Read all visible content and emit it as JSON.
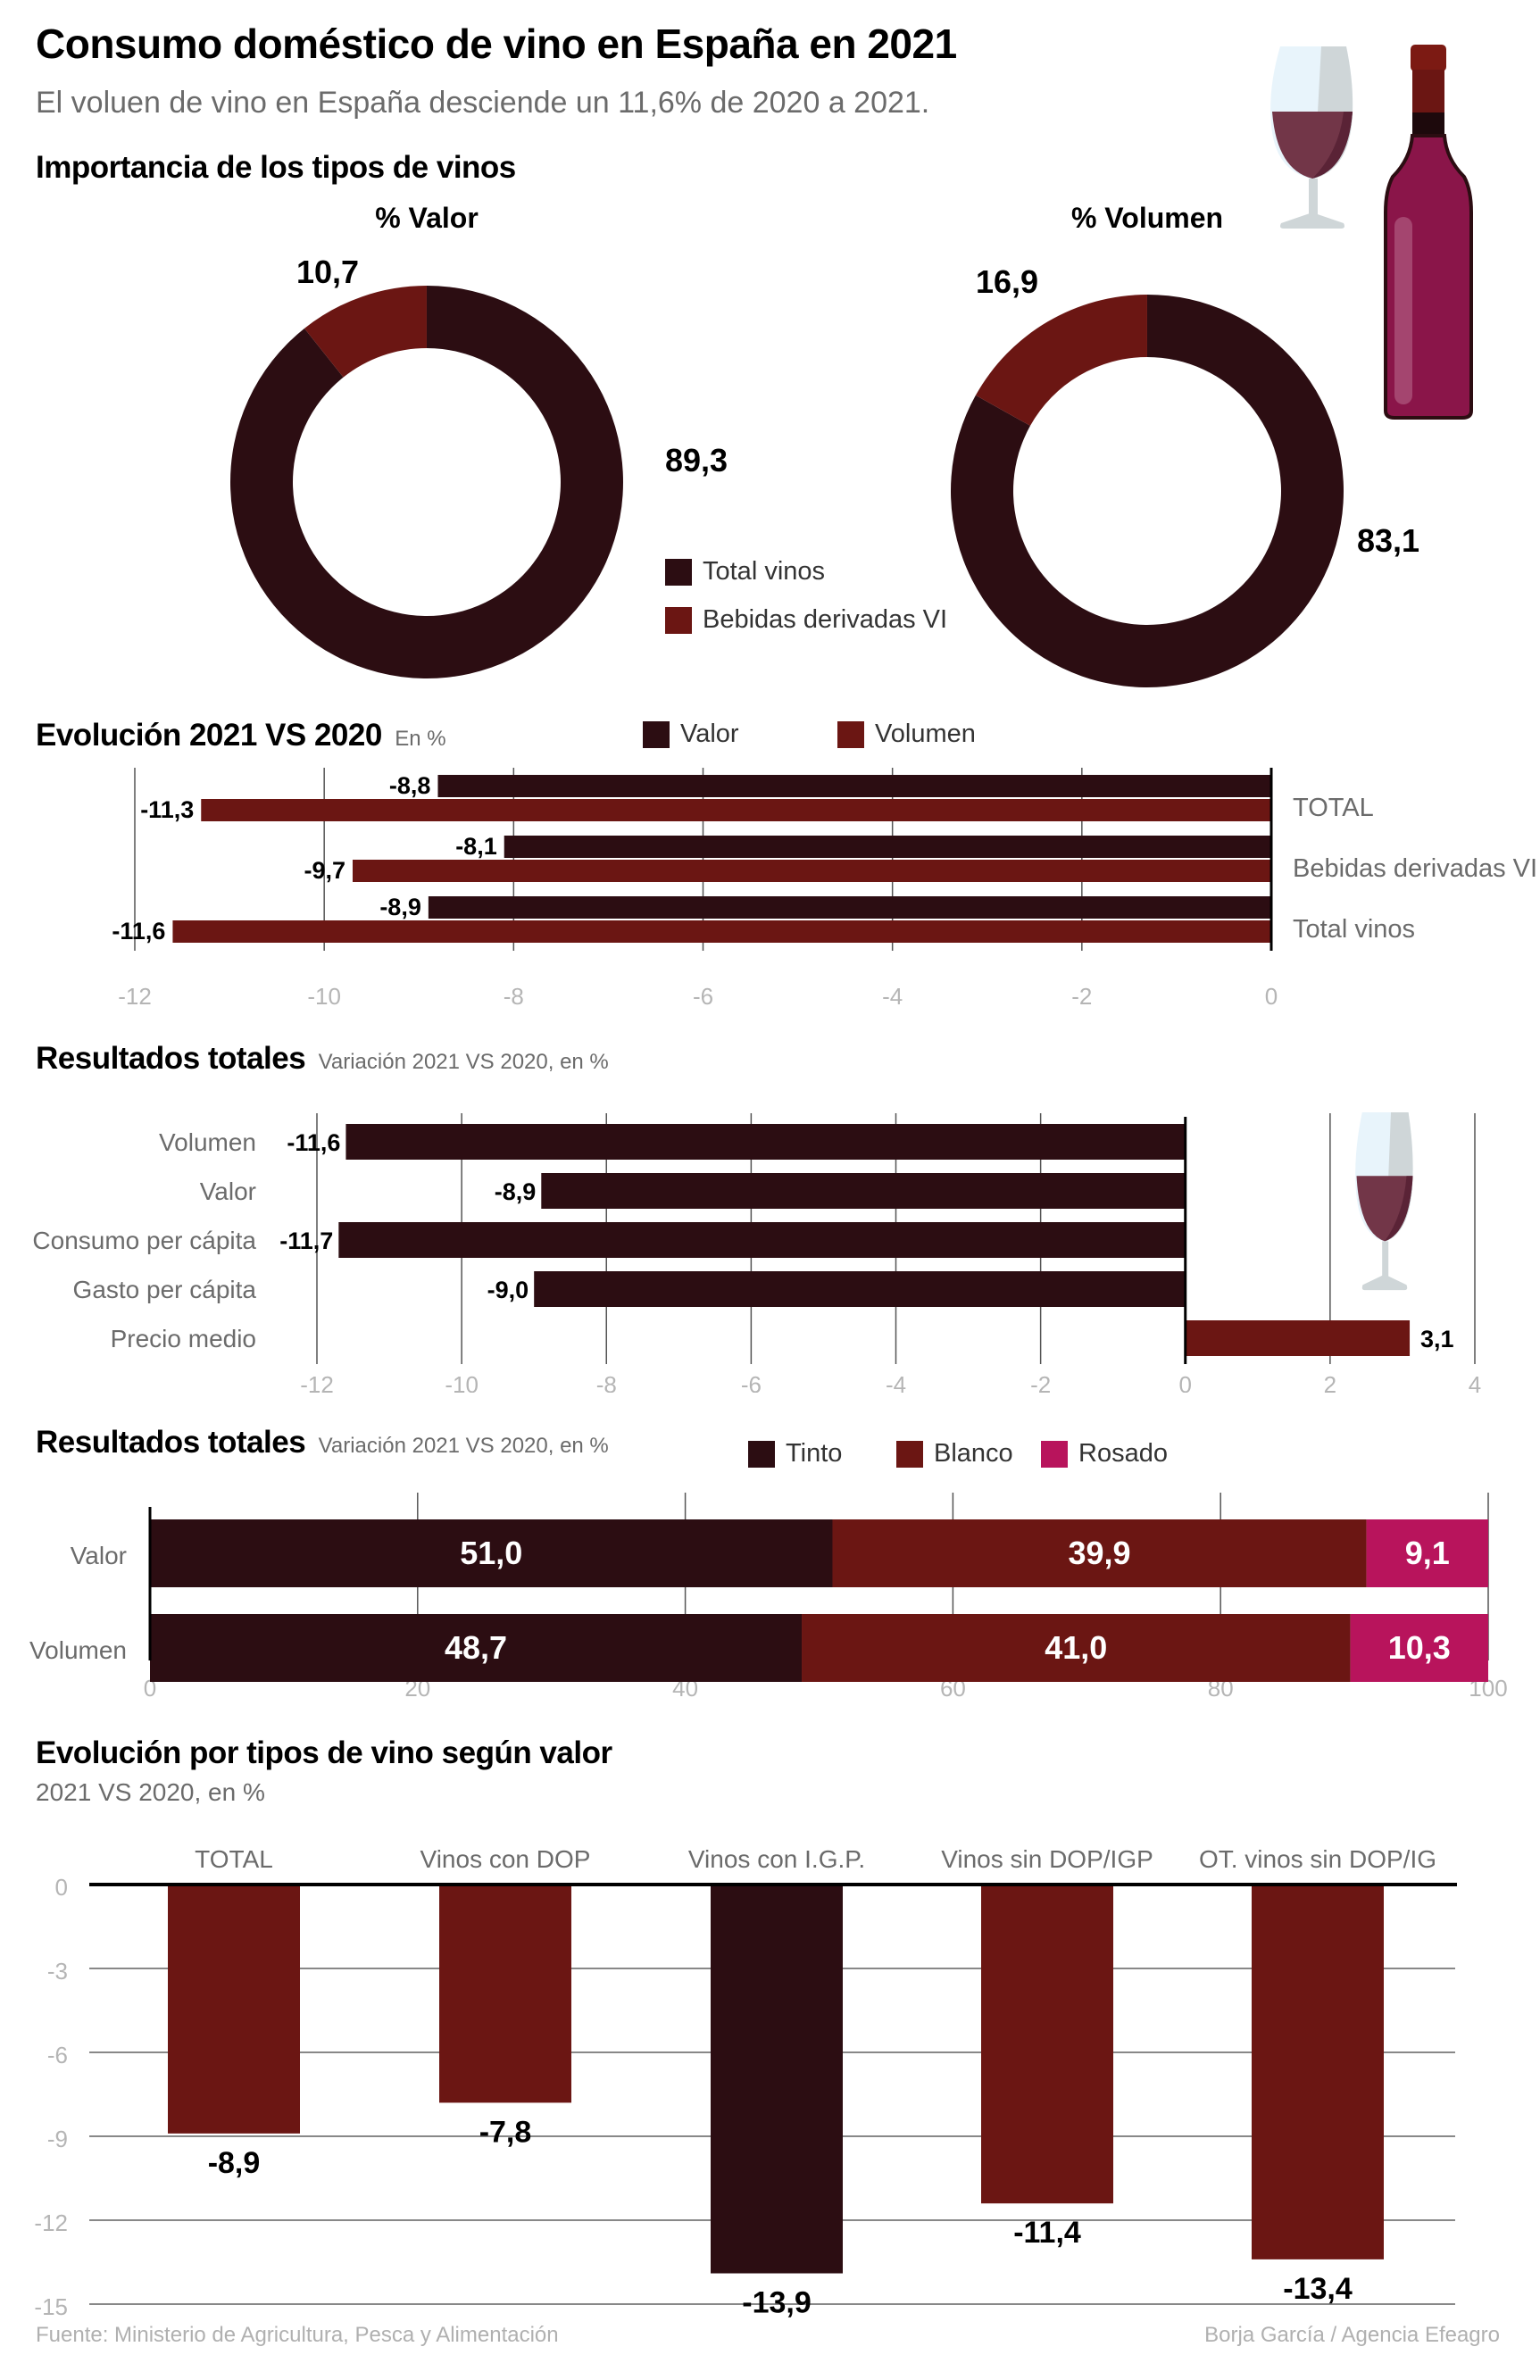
{
  "header": {
    "title": "Consumo doméstico de vino en España en 2021",
    "subtitle": "El voluen de vino en España desciende un 11,6% de 2020 a 2021."
  },
  "colors": {
    "tinto_dark": "#2c0d12",
    "red": "#6b1613",
    "rosado": "#b8145c",
    "axis_text": "#b5b5b5",
    "label_text": "#6b6b6b"
  },
  "icons": [
    "wine-glass-icon",
    "wine-bottle-icon"
  ],
  "sections": {
    "importancia": {
      "title": "Importancia de los tipos de vinos"
    },
    "evolucion": {
      "title": "Evolución 2021 VS 2020",
      "note": "En %"
    },
    "resultados1": {
      "title": "Resultados totales",
      "note": "Variación 2021 VS 2020, en %"
    },
    "resultados2": {
      "title": "Resultados totales",
      "note": "Variación 2021 VS 2020, en %"
    },
    "tipos": {
      "title": "Evolución por tipos de vino según valor",
      "note": "2021 VS 2020, en %"
    }
  },
  "chart_data": [
    {
      "type": "pie",
      "variant": "donut",
      "title": "% Valor",
      "labels": [
        "Total vinos",
        "Bebidas derivadas VI"
      ],
      "values": [
        89.3,
        10.7
      ],
      "value_labels": [
        "89,3",
        "10,7"
      ],
      "legend": [
        "Total vinos",
        "Bebidas derivadas VI"
      ]
    },
    {
      "type": "pie",
      "variant": "donut",
      "title": "% Volumen",
      "labels": [
        "Total vinos",
        "Bebidas derivadas VI"
      ],
      "values": [
        83.1,
        16.9
      ],
      "value_labels": [
        "83,1",
        "16,9"
      ]
    },
    {
      "type": "bar",
      "orientation": "horizontal",
      "title": "Evolución 2021 VS 2020",
      "subtitle": "En %",
      "categories": [
        "TOTAL",
        "Bebidas derivadas VI",
        "Total vinos"
      ],
      "series": [
        {
          "name": "Valor",
          "values": [
            -8.8,
            -8.1,
            -8.9
          ],
          "labels": [
            "-8,8",
            "-8,1",
            "-8,9"
          ]
        },
        {
          "name": "Volumen",
          "values": [
            -11.3,
            -9.7,
            -11.6
          ],
          "labels": [
            "-11,3",
            "-9,7",
            "-11,6"
          ]
        }
      ],
      "xlim": [
        -12,
        0
      ],
      "xticks": [
        "-12",
        "-10",
        "-8",
        "-6",
        "-4",
        "-2",
        "0"
      ],
      "xtick_values": [
        -12,
        -10,
        -8,
        -6,
        -4,
        -2,
        0
      ],
      "grid": true,
      "legend": "top"
    },
    {
      "type": "bar",
      "orientation": "horizontal",
      "title": "Resultados totales",
      "subtitle": "Variación 2021 VS 2020, en %",
      "categories": [
        "Volumen",
        "Valor",
        "Consumo per cápita",
        "Gasto per cápita",
        "Precio medio"
      ],
      "values": [
        -11.6,
        -8.9,
        -11.7,
        -9.0,
        3.1
      ],
      "labels": [
        "-11,6",
        "-8,9",
        "-11,7",
        "-9,0",
        "3,1"
      ],
      "xlim": [
        -12,
        4
      ],
      "xticks": [
        "-12",
        "-10",
        "-8",
        "-6",
        "-4",
        "-2",
        "0",
        "2",
        "4"
      ],
      "xtick_values": [
        -12,
        -10,
        -8,
        -6,
        -4,
        -2,
        0,
        2,
        4
      ],
      "grid": true
    },
    {
      "type": "bar",
      "orientation": "horizontal",
      "stacked": true,
      "title": "Resultados totales",
      "subtitle": "Variación 2021 VS 2020, en %",
      "categories": [
        "Valor",
        "Volumen"
      ],
      "series": [
        {
          "name": "Tinto",
          "values": [
            51.0,
            48.7
          ],
          "labels": [
            "51,0",
            "48,7"
          ]
        },
        {
          "name": "Blanco",
          "values": [
            39.9,
            41.0
          ],
          "labels": [
            "39,9",
            "41,0"
          ]
        },
        {
          "name": "Rosado",
          "values": [
            9.1,
            10.3
          ],
          "labels": [
            "9,1",
            "10,3"
          ]
        }
      ],
      "xlim": [
        0,
        100
      ],
      "xticks": [
        "0",
        "20",
        "40",
        "60",
        "80",
        "100"
      ],
      "xtick_values": [
        0,
        20,
        40,
        60,
        80,
        100
      ],
      "grid": true,
      "legend": "top"
    },
    {
      "type": "bar",
      "orientation": "vertical",
      "title": "Evolución por tipos de vino según valor",
      "subtitle": "2021 VS 2020, en %",
      "categories": [
        "TOTAL",
        "Vinos con DOP",
        "Vinos con I.G.P.",
        "Vinos sin DOP/IGP",
        "OT. vinos sin DOP/IG"
      ],
      "values": [
        -8.9,
        -7.8,
        -13.9,
        -11.4,
        -13.4
      ],
      "labels": [
        "-8,9",
        "-7,8",
        "-13,9",
        "-11,4",
        "-13,4"
      ],
      "highlight_index": 2,
      "ylim": [
        -15,
        0
      ],
      "yticks": [
        "0",
        "-3",
        "-6",
        "-9",
        "-12",
        "-15"
      ],
      "ytick_values": [
        0,
        -3,
        -6,
        -9,
        -12,
        -15
      ],
      "grid": true
    }
  ],
  "footer": {
    "source": "Fuente: Ministerio de Agricultura, Pesca y Alimentación",
    "credit": "Borja García / Agencia Efeagro"
  }
}
